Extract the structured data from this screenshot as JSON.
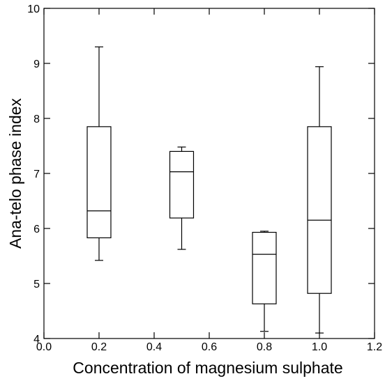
{
  "chart_data": {
    "type": "box",
    "title": "",
    "xlabel": "Concentration of magnesium sulphate",
    "ylabel": "Ana-telo phase index",
    "xlim": [
      0.0,
      1.2
    ],
    "ylim": [
      4,
      10
    ],
    "x_ticks": [
      "0.0",
      "0.2",
      "0.4",
      "0.6",
      "0.8",
      "1.0",
      "1.2"
    ],
    "y_ticks": [
      "4",
      "5",
      "6",
      "7",
      "8",
      "9",
      "10"
    ],
    "grid": false,
    "boxes": [
      {
        "x": 0.2,
        "min": 5.42,
        "q1": 5.83,
        "median": 6.32,
        "q3": 7.85,
        "max": 9.3
      },
      {
        "x": 0.5,
        "min": 5.62,
        "q1": 6.19,
        "median": 7.03,
        "q3": 7.4,
        "max": 7.48
      },
      {
        "x": 0.8,
        "min": 4.13,
        "q1": 4.63,
        "median": 5.53,
        "q3": 5.93,
        "max": 5.95
      },
      {
        "x": 1.0,
        "min": 4.1,
        "q1": 4.82,
        "median": 6.15,
        "q3": 7.85,
        "max": 8.94
      }
    ]
  }
}
